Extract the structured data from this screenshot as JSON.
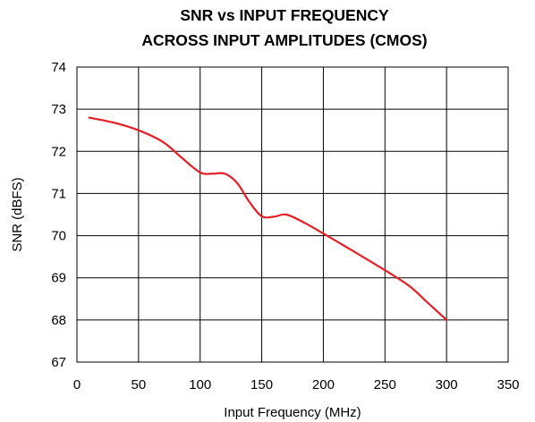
{
  "chart_data": {
    "type": "line",
    "title": "SNR vs INPUT FREQUENCY",
    "subtitle": "ACROSS INPUT AMPLITUDES (CMOS)",
    "xlabel": "Input Frequency (MHz)",
    "ylabel": "SNR (dBFS)",
    "xlim": [
      0,
      350
    ],
    "ylim": [
      67,
      74
    ],
    "xticks": [
      "0",
      "50",
      "100",
      "150",
      "200",
      "250",
      "300",
      "350"
    ],
    "yticks": [
      "67",
      "68",
      "69",
      "70",
      "71",
      "72",
      "73",
      "74"
    ],
    "grid": true,
    "legend": "none",
    "series": [
      {
        "color": "#e31e24",
        "x": [
          10,
          30,
          50,
          70,
          85,
          100,
          110,
          120,
          130,
          140,
          150,
          160,
          170,
          185,
          200,
          225,
          250,
          270,
          285,
          300
        ],
        "y": [
          72.8,
          72.68,
          72.5,
          72.22,
          71.85,
          71.5,
          71.47,
          71.47,
          71.25,
          70.8,
          70.46,
          70.45,
          70.5,
          70.3,
          70.05,
          69.62,
          69.18,
          68.8,
          68.4,
          68.0
        ]
      }
    ]
  }
}
